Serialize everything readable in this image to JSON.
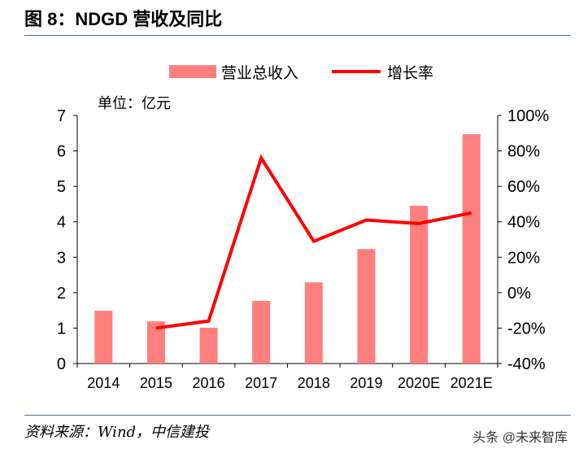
{
  "title": "图 8：NDGD 营收及同比",
  "source": "资料来源：Wind，中信建投",
  "watermark": "头条 @未来智库",
  "chart_data": {
    "type": "bar+line",
    "categories": [
      "2014",
      "2015",
      "2016",
      "2017",
      "2018",
      "2019",
      "2020E",
      "2021E"
    ],
    "unit_label": "单位：亿元",
    "series": [
      {
        "name": "营业总收入",
        "type": "bar",
        "axis": "left",
        "color": "#ff7f7f",
        "values": [
          1.49,
          1.19,
          1.01,
          1.77,
          2.29,
          3.23,
          4.45,
          6.47
        ]
      },
      {
        "name": "增长率",
        "type": "line",
        "axis": "right",
        "color": "#ff0000",
        "values": [
          null,
          -20,
          -16,
          76,
          29,
          41,
          39,
          45
        ]
      }
    ],
    "left_axis": {
      "ylim": [
        0,
        7
      ],
      "ticks": [
        "0",
        "1",
        "2",
        "3",
        "4",
        "5",
        "6",
        "7"
      ]
    },
    "right_axis": {
      "ylim": [
        -40,
        100
      ],
      "ticks": [
        "-40%",
        "-20%",
        "0%",
        "20%",
        "40%",
        "60%",
        "80%",
        "100%"
      ]
    },
    "legend_placement": "top",
    "grid": false
  }
}
